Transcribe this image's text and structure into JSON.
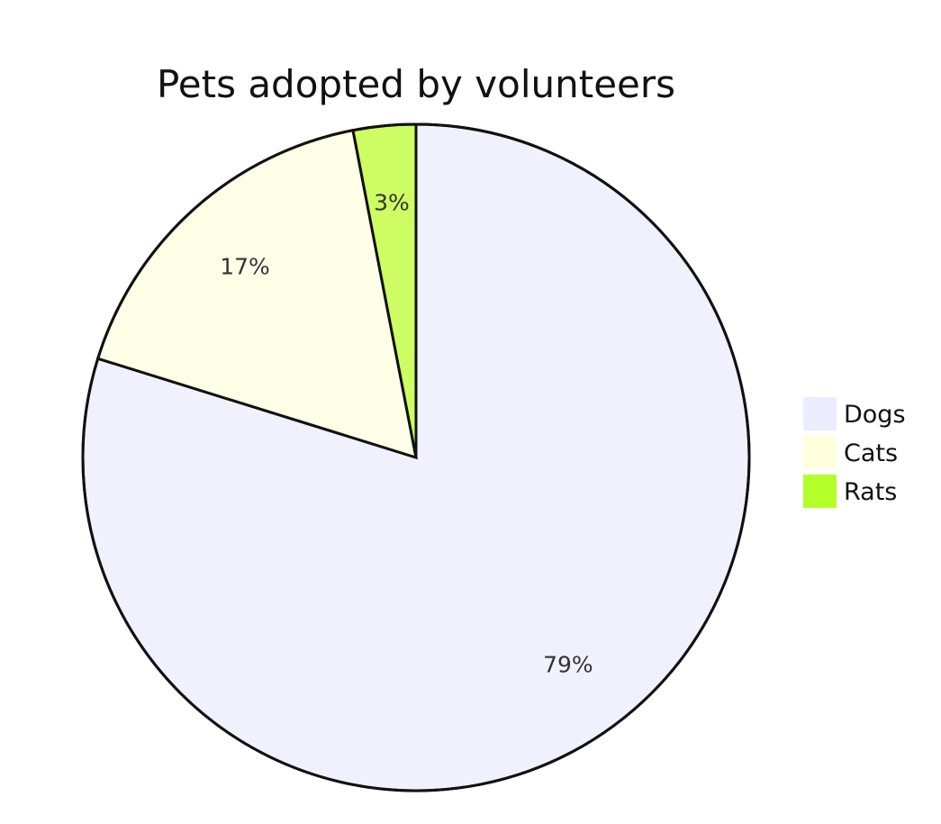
{
  "chart_data": {
    "type": "pie",
    "title": "Pets adopted by volunteers",
    "slices": [
      {
        "label": "Dogs",
        "value": 79,
        "display": "79%",
        "color": "#f1f0fd",
        "legend_color": "#ececff"
      },
      {
        "label": "Cats",
        "value": 17,
        "display": "17%",
        "color": "#ffffe8",
        "legend_color": "#ffffde"
      },
      {
        "label": "Rats",
        "value": 3,
        "display": "3%",
        "color": "#cdfd63",
        "legend_color": "#b4ff2a"
      }
    ],
    "start": "12 o'clock",
    "direction": "clockwise",
    "slice_order": [
      "Dogs",
      "Cats",
      "Rats"
    ],
    "legend_position": "right"
  }
}
